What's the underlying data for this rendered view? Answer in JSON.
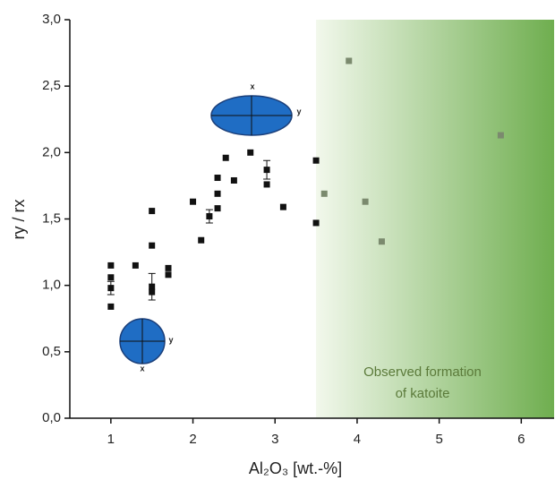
{
  "chart_data": {
    "type": "scatter",
    "xlabel": "Al₂O₃ [wt.-%]",
    "ylabel": "ry / rx",
    "xlim": [
      0.5,
      6.4
    ],
    "ylim": [
      0,
      3.0
    ],
    "xticks": [
      1,
      2,
      3,
      4,
      5,
      6
    ],
    "yticks": [
      {
        "value": 0,
        "label": "0,0"
      },
      {
        "value": 0.5,
        "label": "0,5"
      },
      {
        "value": 1.0,
        "label": "1,0"
      },
      {
        "value": 1.5,
        "label": "1,5"
      },
      {
        "value": 2.0,
        "label": "2,0"
      },
      {
        "value": 2.5,
        "label": "2,5"
      },
      {
        "value": 3.0,
        "label": "3,0"
      }
    ],
    "shaded_region": {
      "from": 3.5,
      "color_start": "#f2f8ec",
      "color_end": "#6fae4f"
    },
    "annotation": [
      "Observed formation",
      "of katoite"
    ],
    "icons": [
      {
        "x": "x",
        "y": "y"
      },
      {
        "x": "x",
        "y": "y"
      }
    ],
    "series": [
      {
        "color": "#111111",
        "x": [
          1.0,
          1.0,
          1.0,
          1.0,
          1.3,
          1.5,
          1.5,
          1.5,
          1.5,
          1.7,
          1.7,
          2.0,
          2.1,
          2.2,
          2.3,
          2.3,
          2.3,
          2.4,
          2.5,
          2.7,
          2.9,
          2.9,
          3.1,
          3.5,
          3.5
        ],
        "values": [
          1.15,
          1.06,
          0.98,
          0.84,
          1.15,
          1.56,
          1.3,
          0.99,
          0.95,
          1.13,
          1.08,
          1.63,
          1.34,
          1.52,
          1.81,
          1.69,
          1.58,
          1.96,
          1.79,
          2.0,
          1.87,
          1.76,
          1.59,
          1.94,
          1.47
        ],
        "errors": [
          null,
          null,
          0.05,
          null,
          null,
          null,
          null,
          0.1,
          null,
          null,
          null,
          null,
          null,
          0.05,
          null,
          null,
          null,
          null,
          null,
          null,
          0.07,
          null,
          null,
          null,
          null
        ]
      },
      {
        "color": "#7b8a6e",
        "x": [
          3.6,
          3.9,
          4.1,
          4.3,
          5.75
        ],
        "values": [
          1.69,
          2.69,
          1.63,
          1.33,
          2.13
        ]
      }
    ]
  }
}
